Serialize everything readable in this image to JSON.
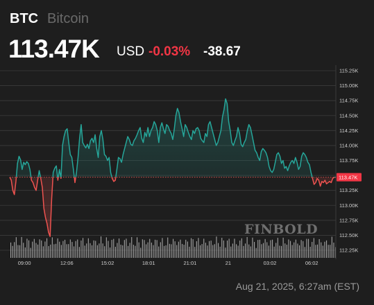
{
  "header": {
    "symbol": "BTC",
    "name": "Bitcoin",
    "price": "113.47K",
    "currency": "USD",
    "change_pct": "-0.03%",
    "change_abs": "-38.67"
  },
  "footer": {
    "timestamp": "Aug 21, 2025, 6:27am (EST)"
  },
  "watermark": "FINBOLD",
  "colors": {
    "up": "#26a69a",
    "down": "#ef5350",
    "background": "#1e1e1e",
    "price_label_bg": "#f23645"
  },
  "chart_data": {
    "type": "line",
    "title": "",
    "xlabel": "",
    "ylabel": "",
    "x_ticks": [
      "09:00",
      "12:06",
      "15:02",
      "18:01",
      "21:01",
      "21",
      "03:02",
      "06:02"
    ],
    "y_ticks": [
      "112.25K",
      "112.50K",
      "112.75K",
      "113.00K",
      "113.25K",
      "113.50K",
      "113.75K",
      "114.00K",
      "114.25K",
      "114.50K",
      "114.75K",
      "115.00K",
      "115.25K"
    ],
    "ylim": [
      112.25,
      115.25
    ],
    "baseline": 113.47,
    "last_price_label": "113.47K",
    "grid": true,
    "series": [
      {
        "values": [
          113.47,
          113.42,
          113.25,
          113.18,
          113.4,
          113.7,
          113.82,
          113.76,
          113.6,
          113.72,
          113.68,
          113.73,
          113.7,
          113.6,
          113.42,
          113.38,
          113.3,
          113.25,
          113.42,
          113.58,
          113.45,
          113.3,
          112.95,
          112.8,
          112.7,
          112.55,
          112.48,
          113.1,
          113.55,
          113.62,
          113.66,
          113.42,
          113.6,
          113.45,
          114.0,
          114.15,
          114.25,
          114.28,
          114.05,
          113.85,
          113.8,
          113.6,
          113.38,
          113.55,
          113.8,
          114.12,
          114.35,
          114.05,
          114.0,
          113.96,
          114.02,
          113.95,
          114.08,
          114.12,
          114.05,
          114.18,
          113.95,
          113.8,
          114.15,
          114.25,
          114.1,
          113.85,
          113.82,
          113.75,
          113.8,
          113.55,
          113.45,
          113.4,
          113.42,
          113.6,
          113.8,
          113.78,
          113.72,
          113.85,
          113.95,
          114.05,
          114.15,
          114.1,
          114.02,
          114.0,
          114.08,
          114.12,
          114.18,
          114.25,
          114.3,
          114.12,
          114.05,
          114.22,
          114.15,
          114.3,
          114.15,
          114.25,
          114.3,
          114.4,
          114.35,
          114.25,
          114.05,
          114.3,
          114.38,
          114.28,
          114.2,
          114.35,
          114.32,
          114.25,
          114.2,
          114.1,
          114.28,
          114.5,
          114.62,
          114.55,
          114.4,
          114.28,
          114.15,
          114.35,
          114.3,
          114.22,
          114.15,
          114.1,
          114.25,
          114.2,
          114.28,
          114.3,
          114.25,
          114.12,
          114.08,
          114.05,
          114.2,
          114.15,
          114.35,
          114.4,
          114.3,
          114.2,
          114.1,
          114.0,
          114.05,
          114.15,
          114.25,
          114.48,
          114.6,
          114.78,
          114.7,
          114.4,
          114.25,
          114.05,
          114.0,
          114.08,
          114.15,
          114.3,
          114.2,
          114.02,
          113.98,
          114.05,
          114.1,
          114.25,
          114.35,
          114.3,
          114.18,
          114.05,
          113.92,
          113.88,
          113.8,
          113.75,
          113.9,
          113.95,
          113.92,
          113.88,
          113.8,
          113.65,
          113.58,
          113.55,
          113.6,
          113.72,
          113.85,
          113.88,
          113.82,
          113.7,
          113.75,
          113.62,
          113.65,
          113.58,
          113.66,
          113.72,
          113.75,
          113.7,
          113.8,
          113.72,
          113.6,
          113.65,
          113.82,
          113.88,
          113.85,
          113.8,
          113.72,
          113.68,
          113.55,
          113.45,
          113.35,
          113.38,
          113.45,
          113.42,
          113.32,
          113.4,
          113.38,
          113.42,
          113.36,
          113.38,
          113.4,
          113.38,
          113.45,
          113.47,
          113.47
        ]
      }
    ]
  }
}
